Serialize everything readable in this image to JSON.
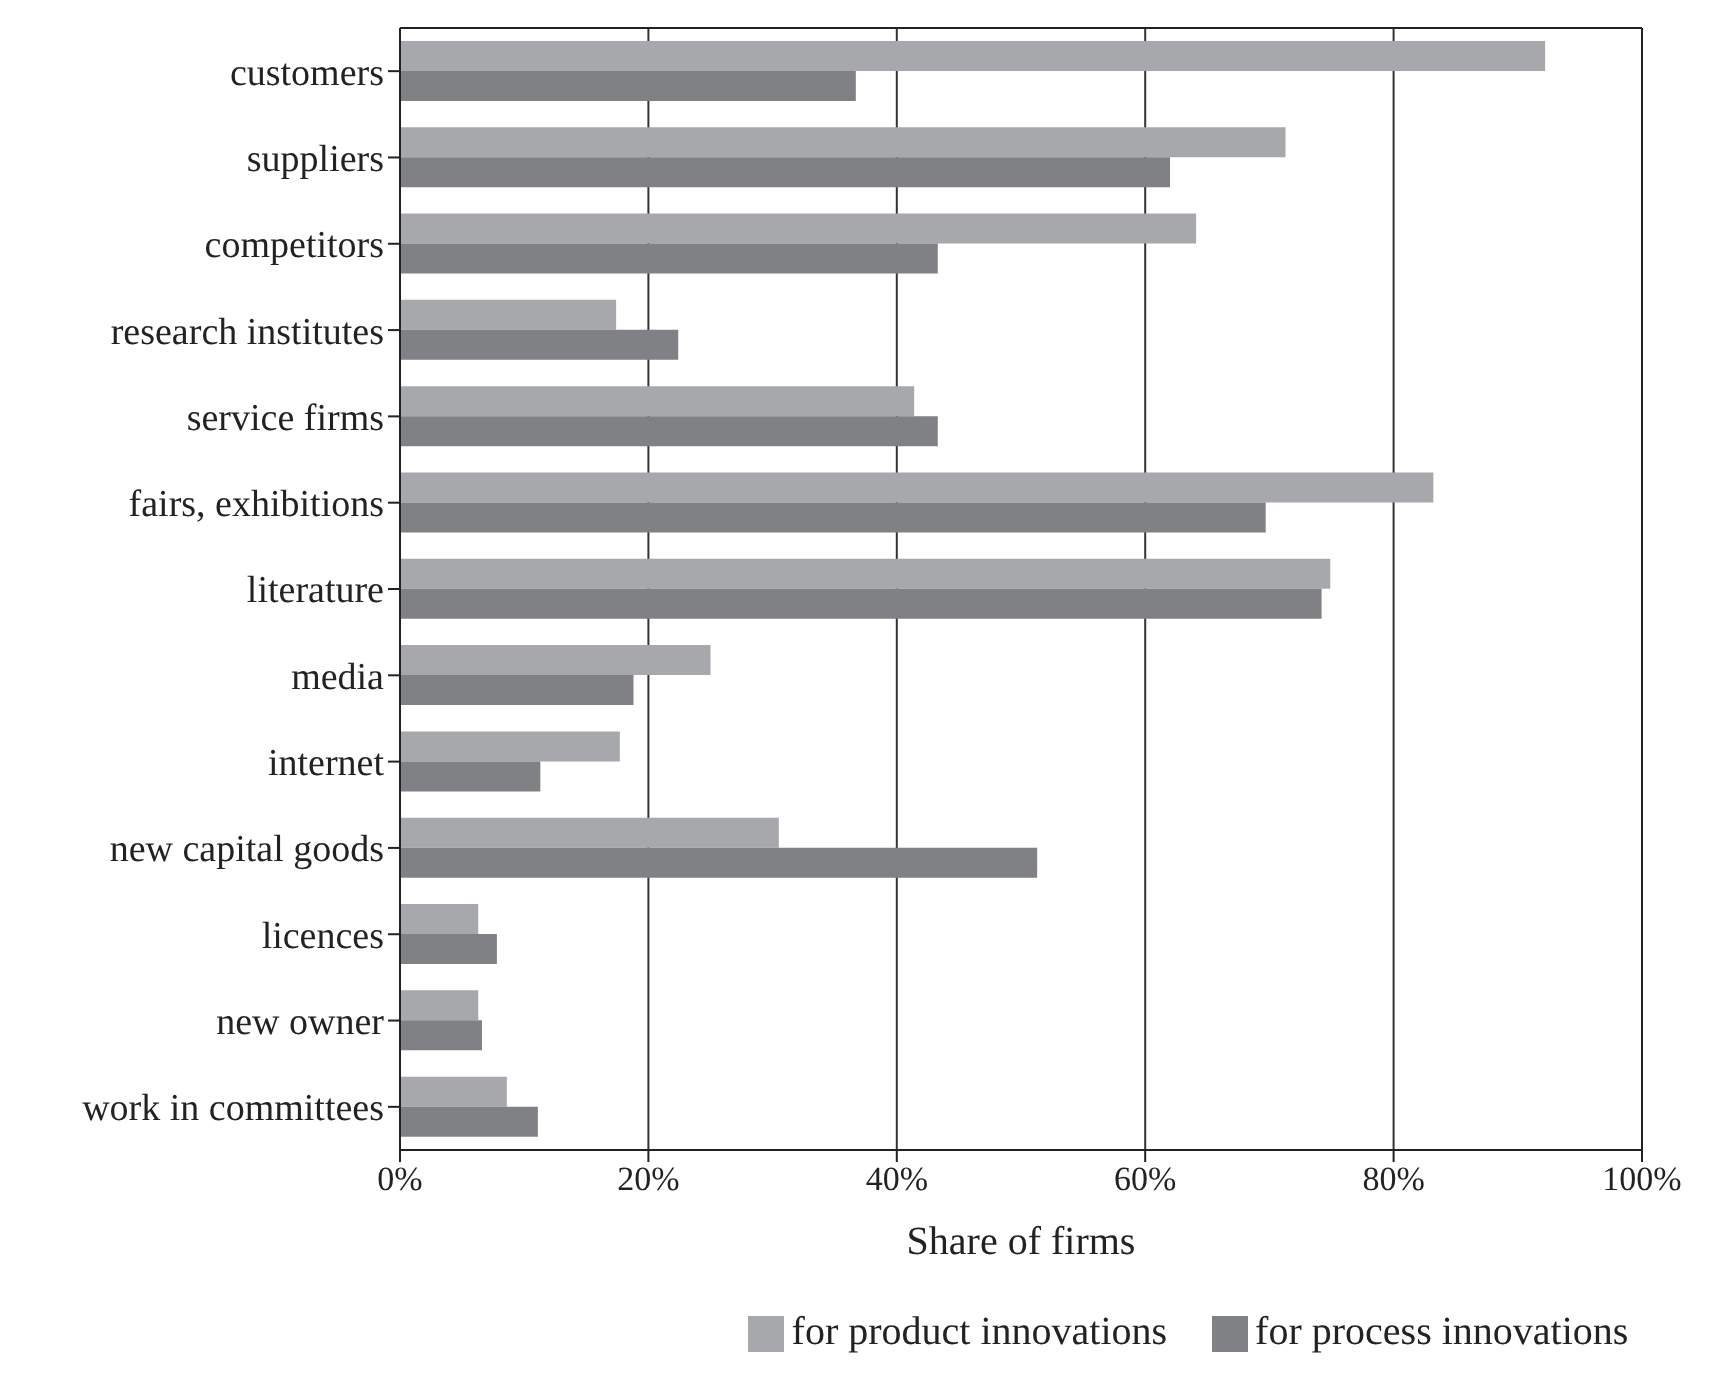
{
  "chart_data": {
    "type": "bar",
    "orientation": "horizontal",
    "xlabel": "Share of firms",
    "categories": [
      "customers",
      "suppliers",
      "competitors",
      "research institutes",
      "service firms",
      "fairs, exhibitions",
      "literature",
      "media",
      "internet",
      "new capital goods",
      "licences",
      "new owner",
      "work in committees"
    ],
    "series": [
      {
        "name": "for product innovations",
        "color": "#a7a8ab",
        "values": [
          92.2,
          71.3,
          64.1,
          17.4,
          41.4,
          83.2,
          74.9,
          25.0,
          17.7,
          30.5,
          6.3,
          6.3,
          8.6
        ]
      },
      {
        "name": "for process innovations",
        "color": "#808185",
        "values": [
          36.7,
          62.0,
          43.3,
          22.4,
          43.3,
          69.7,
          74.2,
          18.8,
          11.3,
          51.3,
          7.8,
          6.6,
          11.1
        ]
      }
    ],
    "xlim": [
      0,
      100
    ],
    "xticks": [
      {
        "value": 0,
        "label": "0%"
      },
      {
        "value": 20,
        "label": "20%"
      },
      {
        "value": 40,
        "label": "40%"
      },
      {
        "value": 60,
        "label": "60%"
      },
      {
        "value": 80,
        "label": "80%"
      },
      {
        "value": 100,
        "label": "100%"
      }
    ],
    "grid": "x",
    "legend": "bottom"
  }
}
